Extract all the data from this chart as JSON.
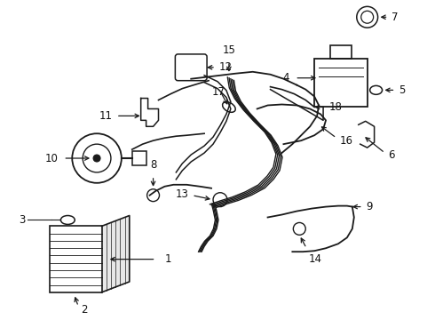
{
  "bg_color": "#ffffff",
  "line_color": "#1a1a1a",
  "text_color": "#111111",
  "fig_width": 4.9,
  "fig_height": 3.6,
  "dpi": 100
}
